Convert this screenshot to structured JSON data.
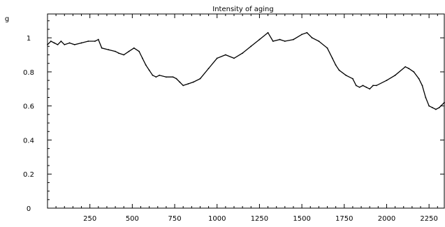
{
  "chart_data": {
    "type": "line",
    "title": "Intensity of aging",
    "ylabel": "g",
    "xlabel": "",
    "xlim": [
      0,
      2340
    ],
    "ylim": [
      0,
      1.14
    ],
    "grid": false,
    "legend": "none",
    "x_ticks": [
      250,
      500,
      750,
      1000,
      1250,
      1500,
      1750,
      2000,
      2250
    ],
    "y_ticks": [
      0,
      0.2,
      0.4,
      0.6,
      0.8,
      1
    ],
    "y_tick_labels": [
      "0",
      "0.2",
      "0.4",
      "0.6",
      "0.8",
      "1"
    ],
    "series": [
      {
        "color": "#000000",
        "x": [
          0,
          20,
          40,
          60,
          80,
          100,
          130,
          160,
          200,
          240,
          280,
          300,
          320,
          360,
          400,
          420,
          450,
          480,
          510,
          540,
          560,
          580,
          600,
          620,
          640,
          660,
          700,
          740,
          760,
          780,
          800,
          830,
          860,
          900,
          950,
          1000,
          1050,
          1100,
          1150,
          1200,
          1250,
          1300,
          1330,
          1370,
          1400,
          1450,
          1500,
          1530,
          1560,
          1600,
          1650,
          1680,
          1700,
          1720,
          1760,
          1800,
          1820,
          1840,
          1860,
          1880,
          1900,
          1920,
          1940,
          2000,
          2050,
          2110,
          2130,
          2160,
          2190,
          2210,
          2230,
          2250,
          2270,
          2290,
          2310,
          2340
        ],
        "y": [
          0.96,
          0.98,
          0.97,
          0.96,
          0.98,
          0.96,
          0.97,
          0.96,
          0.97,
          0.98,
          0.98,
          0.99,
          0.94,
          0.93,
          0.92,
          0.91,
          0.9,
          0.92,
          0.94,
          0.92,
          0.88,
          0.84,
          0.81,
          0.78,
          0.77,
          0.78,
          0.77,
          0.77,
          0.76,
          0.74,
          0.72,
          0.73,
          0.74,
          0.76,
          0.82,
          0.88,
          0.9,
          0.88,
          0.91,
          0.95,
          0.99,
          1.03,
          0.98,
          0.99,
          0.98,
          0.99,
          1.02,
          1.03,
          1.0,
          0.98,
          0.94,
          0.88,
          0.84,
          0.81,
          0.78,
          0.76,
          0.72,
          0.71,
          0.72,
          0.71,
          0.7,
          0.72,
          0.72,
          0.75,
          0.78,
          0.83,
          0.82,
          0.8,
          0.76,
          0.72,
          0.65,
          0.6,
          0.59,
          0.58,
          0.59,
          0.62
        ]
      }
    ]
  }
}
